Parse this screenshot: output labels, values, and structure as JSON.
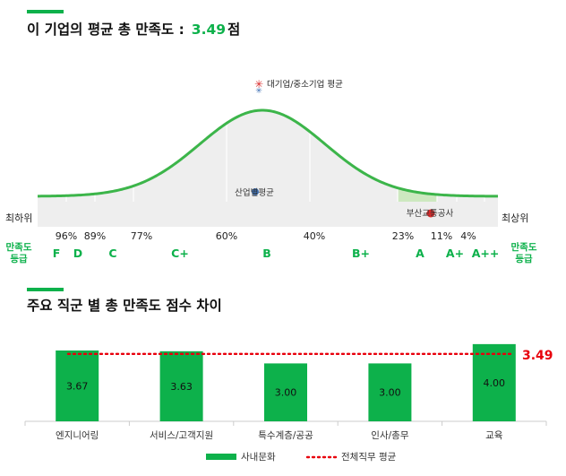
{
  "section1": {
    "title": "이 기업의 평균 총 만족도 :",
    "score": "3.49",
    "score_suffix": "점"
  },
  "section2": {
    "title": "주요 직군 별 총 만족도 점수 차이"
  },
  "colors": {
    "accent": "#0db14b",
    "curve": "#3cb54a",
    "curve_fill": "#eeeeee",
    "highlight_fill": "#cde8c0",
    "reference_line": "#e8000c",
    "bar": "#0db14b",
    "marker_company": "#d92b2b",
    "marker_industry": "#3d6fb3",
    "marker_large": "#d92b2b"
  },
  "chart_data": [
    {
      "type": "area",
      "title": "",
      "xlabel": "",
      "ylabel": "",
      "left_end_label": "최하위",
      "right_end_label": "최상위",
      "percentile_ticks": [
        "96%",
        "89%",
        "77%",
        "60%",
        "40%",
        "23%",
        "11%",
        "4%"
      ],
      "grades": [
        "F",
        "D",
        "C",
        "C+",
        "B",
        "B+",
        "A",
        "A+",
        "A++"
      ],
      "grade_axis_label": "만족도 등급",
      "highlighted_grade": "A",
      "markers": [
        {
          "label": "대기업/중소기업 평균",
          "grade_position": "B",
          "icon": "star-icon"
        },
        {
          "label": "산업별평균",
          "grade_position": "B",
          "icon": "circle-marker"
        },
        {
          "label": "부산교통공사",
          "grade_position": "A",
          "icon": "circle-marker"
        }
      ],
      "grid": true
    },
    {
      "type": "bar",
      "title": "",
      "categories": [
        "엔지니어링",
        "서비스/고객지원",
        "특수계층/공공",
        "인사/총무",
        "교육"
      ],
      "series": [
        {
          "name": "사내문화",
          "values": [
            3.67,
            3.63,
            3.0,
            3.0,
            4.0
          ]
        }
      ],
      "value_labels": [
        "3.67",
        "3.63",
        "3.00",
        "3.00",
        "4.00"
      ],
      "reference_line": {
        "name": "전체직무 평균",
        "value": 3.49,
        "label": "3.49"
      },
      "legend": [
        "사내문화",
        "전체직무 평균"
      ],
      "legend_position": "bottom",
      "grid": false
    }
  ]
}
